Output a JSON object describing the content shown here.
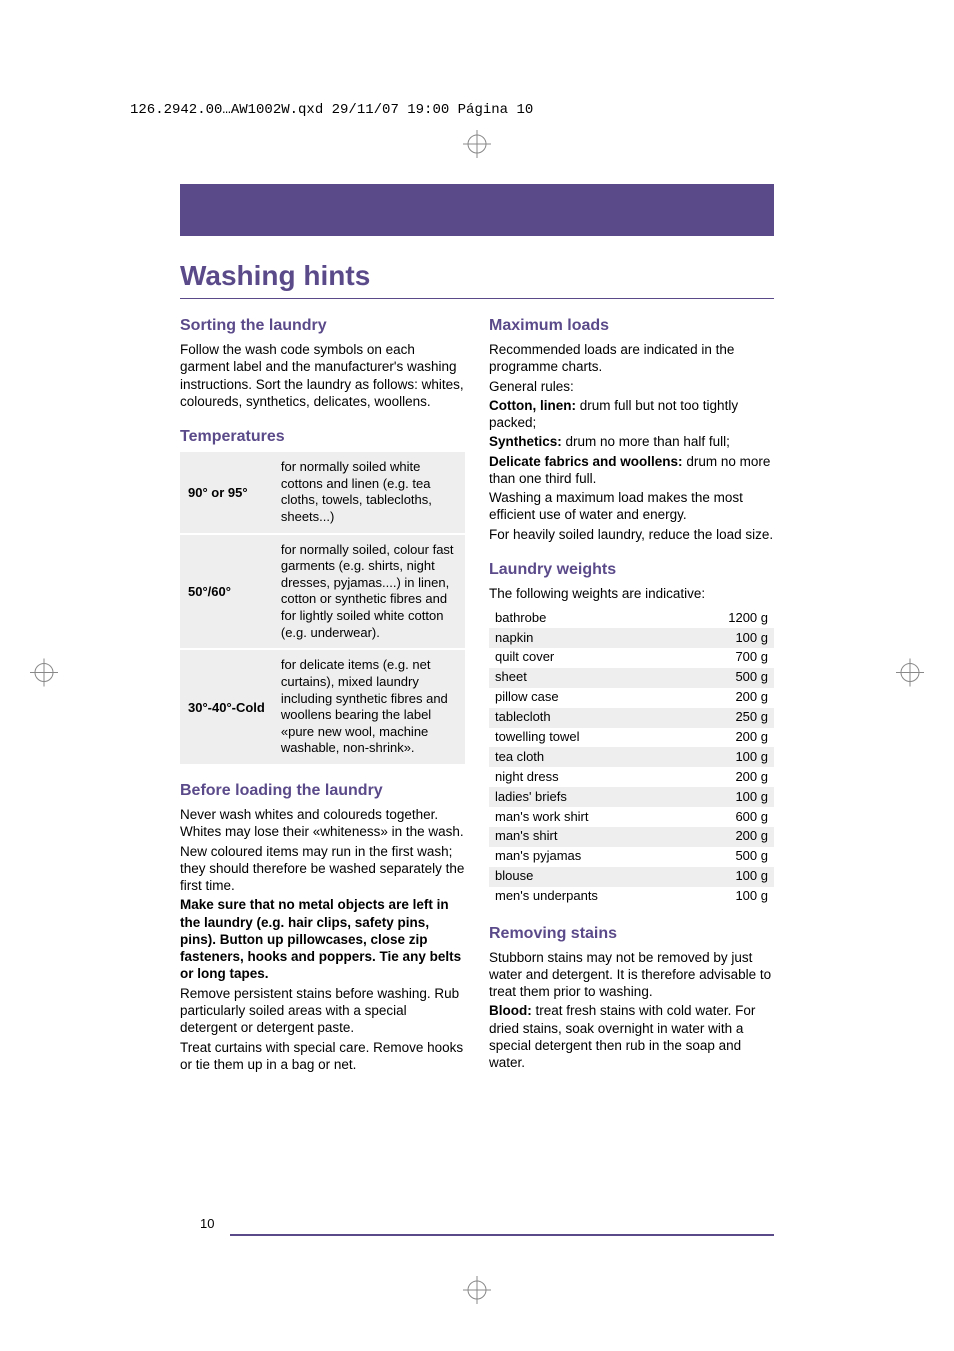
{
  "print_header": "126.2942.00…AW1002W.qxd  29/11/07  19:00  Página 10",
  "colors": {
    "accent": "#5b4a8a",
    "row_alt": "#eeeeee",
    "bg": "#ffffff",
    "text": "#000000"
  },
  "page_number": "10",
  "title": "Washing hints",
  "left": {
    "sorting": {
      "heading": "Sorting the laundry",
      "body": "Follow the wash code symbols on each garment label and the manufacturer's washing instructions. Sort the laundry as follows: whites, coloureds, synthetics, delicates, woollens."
    },
    "temperatures": {
      "heading": "Temperatures",
      "rows": [
        {
          "label": "90° or 95°",
          "desc": "for normally soiled white cottons and linen (e.g. tea cloths, towels, tablecloths, sheets...)"
        },
        {
          "label": "50°/60°",
          "desc": "for normally soiled, colour fast garments (e.g. shirts, night dresses, pyjamas....) in linen, cotton or synthetic fibres and for lightly soiled white cotton (e.g. underwear)."
        },
        {
          "label": "30°-40°-Cold",
          "desc": "for delicate items (e.g. net curtains), mixed laundry including synthetic fibres and woollens bearing the label «pure new wool, machine washable, non-shrink»."
        }
      ]
    },
    "before": {
      "heading": "Before loading the laundry",
      "p1": "Never wash whites and coloureds together. Whites may lose their «whiteness» in the wash.",
      "p2": "New coloured items may run in the first wash; they should therefore be washed separately the first time.",
      "p3_bold": "Make sure that no metal objects are left in the laundry (e.g. hair clips, safety pins, pins). Button up pillowcases, close zip fasteners, hooks and poppers. Tie any belts or long tapes.",
      "p4": "Remove persistent stains before washing. Rub particularly soiled areas with a special detergent or detergent paste.",
      "p5": "Treat curtains with special care. Remove hooks or tie them up in a bag or net."
    }
  },
  "right": {
    "maxloads": {
      "heading": "Maximum loads",
      "p1": "Recommended loads are indicated in the programme charts.",
      "p2": "General rules:",
      "l1_label": "Cotton, linen:",
      "l1_text": " drum full but not too tightly packed;",
      "l2_label": "Synthetics:",
      "l2_text": " drum no more than half full;",
      "l3_label": "Delicate fabrics and woollens:",
      "l3_text": " drum no more than one third full.",
      "p3": "Washing a maximum load makes the most efficient use of water and energy.",
      "p4": "For heavily soiled laundry, reduce the load size."
    },
    "weights": {
      "heading": "Laundry weights",
      "intro": "The following weights are indicative:",
      "rows": [
        {
          "item": "bathrobe",
          "wt": "1200 g"
        },
        {
          "item": "napkin",
          "wt": "100 g"
        },
        {
          "item": "quilt cover",
          "wt": "700 g"
        },
        {
          "item": "sheet",
          "wt": "500 g"
        },
        {
          "item": "pillow case",
          "wt": "200 g"
        },
        {
          "item": "tablecloth",
          "wt": "250 g"
        },
        {
          "item": "towelling towel",
          "wt": "200 g"
        },
        {
          "item": "tea cloth",
          "wt": "100 g"
        },
        {
          "item": "night dress",
          "wt": "200 g"
        },
        {
          "item": "ladies' briefs",
          "wt": "100 g"
        },
        {
          "item": "man's work shirt",
          "wt": "600 g"
        },
        {
          "item": "man's shirt",
          "wt": "200 g"
        },
        {
          "item": "man's pyjamas",
          "wt": "500 g"
        },
        {
          "item": "blouse",
          "wt": "100 g"
        },
        {
          "item": "men's underpants",
          "wt": "100 g"
        }
      ]
    },
    "stains": {
      "heading": "Removing stains",
      "p1": "Stubborn stains may not be removed by just water and detergent. It is therefore advisable to treat them prior to washing.",
      "p2_label": "Blood:",
      "p2_text": " treat fresh stains with cold water. For dried stains, soak overnight in water with a special detergent then rub in the soap and water."
    }
  }
}
